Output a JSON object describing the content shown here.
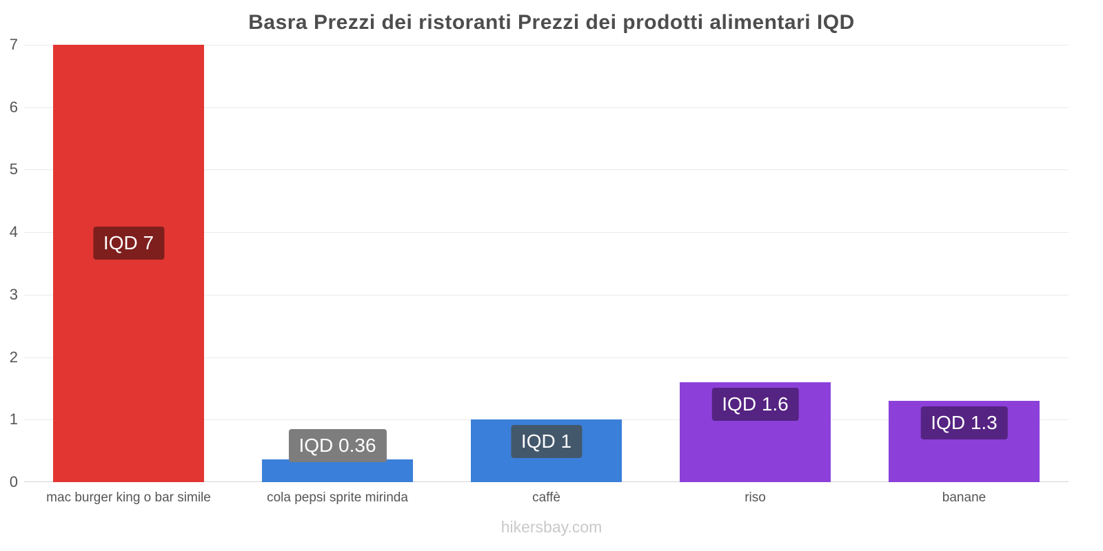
{
  "page": {
    "watermark": "hikersbay.com"
  },
  "chart_data": {
    "type": "bar",
    "title": "Basra Prezzi dei ristoranti Prezzi dei prodotti alimentari IQD",
    "currency": "IQD",
    "categories": [
      "mac burger king o bar simile",
      "cola pepsi sprite mirinda",
      "caffè",
      "riso",
      "banane"
    ],
    "values": [
      7,
      0.36,
      1,
      1.6,
      1.3
    ],
    "value_labels": [
      "IQD 7",
      "IQD 0.36",
      "IQD 1",
      "IQD 1.6",
      "IQD 1.3"
    ],
    "bar_colors": [
      "#e23632",
      "#3a7fd9",
      "#3a7fd9",
      "#8c40d9",
      "#8c40d9"
    ],
    "label_bg_colors": [
      "#7e1f1d",
      "#7d7d7d",
      "#44586c",
      "#552382",
      "#552382"
    ],
    "xlabel": "",
    "ylabel": "",
    "ylim": [
      0,
      7
    ],
    "yticks": [
      0,
      1,
      2,
      3,
      4,
      5,
      6,
      7
    ],
    "grid": true,
    "legend": "none"
  }
}
